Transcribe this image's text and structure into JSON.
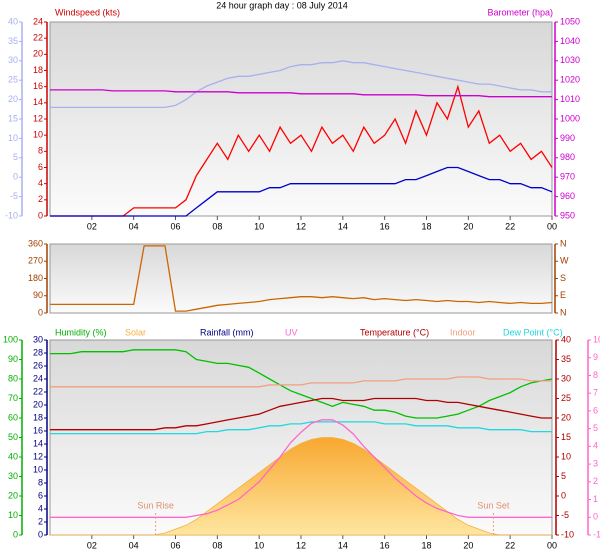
{
  "chart_data": [
    {
      "type": "line",
      "title": "24 hour graph day : 08 July 2014",
      "x": [
        0,
        0.5,
        1,
        1.5,
        2,
        2.5,
        3,
        3.5,
        4,
        4.5,
        5,
        5.5,
        6,
        6.5,
        7,
        7.5,
        8,
        8.5,
        9,
        9.5,
        10,
        10.5,
        11,
        11.5,
        12,
        12.5,
        13,
        13.5,
        14,
        14.5,
        15,
        15.5,
        16,
        16.5,
        17,
        17.5,
        18,
        18.5,
        19,
        19.5,
        20,
        20.5,
        21,
        21.5,
        22,
        22.5,
        23,
        23.5,
        24
      ],
      "xlim": [
        0,
        24
      ],
      "xticks": [
        {
          "value": 2,
          "label": "02"
        },
        {
          "value": 4,
          "label": "04"
        },
        {
          "value": 6,
          "label": "06"
        },
        {
          "value": 8,
          "label": "08"
        },
        10,
        12,
        14,
        16,
        18,
        20,
        22,
        {
          "value": 24,
          "label": "00"
        }
      ],
      "axes": [
        {
          "color": "#a8b0f0",
          "lim": [
            -10,
            40
          ],
          "ticks": [
            -10,
            -5,
            0,
            5,
            10,
            15,
            20,
            25,
            30,
            35,
            40
          ]
        },
        {
          "label": "Windspeed (kts)",
          "color": "#cc0000",
          "lim": [
            0,
            24
          ],
          "ticks": [
            0,
            2,
            4,
            6,
            8,
            10,
            12,
            14,
            16,
            18,
            20,
            22,
            24
          ]
        },
        {
          "label": "Barometer (hpa)",
          "color": "#cc00cc",
          "lim": [
            950,
            1050
          ],
          "ticks": [
            950,
            960,
            970,
            980,
            990,
            1000,
            1010,
            1020,
            1030,
            1040,
            1050
          ]
        }
      ],
      "series": [
        {
          "color": "#a8b0f0",
          "axis": 0,
          "values": [
            18,
            18,
            18,
            18,
            18,
            18,
            18,
            18,
            18,
            18,
            18,
            18,
            18.5,
            20,
            22,
            23.5,
            24.5,
            25.5,
            26,
            26,
            26.5,
            27,
            27.5,
            28.5,
            29,
            29,
            29.5,
            29.5,
            30,
            29.5,
            29.5,
            29,
            28.5,
            28,
            27.5,
            27,
            26.5,
            26,
            25.5,
            25,
            24.5,
            24,
            24,
            23.5,
            23,
            22.5,
            22.5,
            22,
            22
          ]
        },
        {
          "color": "#ff0000",
          "axis": 1,
          "values": [
            0,
            0,
            0,
            0,
            0,
            0,
            0,
            0,
            1,
            1,
            1,
            1,
            1,
            2,
            5,
            7,
            9,
            7,
            10,
            8,
            10,
            8,
            11,
            9,
            10,
            8,
            11,
            9,
            10,
            8,
            11,
            9,
            10,
            12,
            9,
            13,
            10,
            14,
            12,
            16,
            11,
            13,
            9,
            10,
            8,
            9,
            7,
            8,
            6
          ]
        },
        {
          "color": "#0000cc",
          "axis": 1,
          "values": [
            0,
            0,
            0,
            0,
            0,
            0,
            0,
            0,
            0,
            0,
            0,
            0,
            0,
            0,
            1,
            2,
            3,
            3,
            3,
            3,
            3,
            3.5,
            3.5,
            4,
            4,
            4,
            4,
            4,
            4,
            4,
            4,
            4,
            4,
            4,
            4.5,
            4.5,
            5,
            5.5,
            6,
            6,
            5.5,
            5,
            4.5,
            4.5,
            4,
            4,
            3.5,
            3.5,
            3
          ]
        },
        {
          "color": "#cc00cc",
          "axis": 2,
          "values": [
            1015,
            1015,
            1015,
            1015,
            1015,
            1015,
            1014.5,
            1014.5,
            1014.5,
            1014.5,
            1014.5,
            1014.5,
            1014,
            1014,
            1014,
            1014,
            1014,
            1014,
            1013.5,
            1013.5,
            1013.5,
            1013.5,
            1013.5,
            1013.5,
            1013,
            1013,
            1013,
            1013,
            1013,
            1013,
            1012.5,
            1012.5,
            1012.5,
            1012.5,
            1012.5,
            1012.5,
            1012,
            1012,
            1012,
            1012,
            1012,
            1012,
            1011.5,
            1011.5,
            1011.5,
            1011.5,
            1011.5,
            1011.5,
            1011.5
          ]
        }
      ]
    },
    {
      "type": "line",
      "x": [
        0,
        0.5,
        1,
        1.5,
        2,
        2.5,
        3,
        3.5,
        4,
        4.5,
        5,
        5.5,
        6,
        6.5,
        7,
        7.5,
        8,
        8.5,
        9,
        9.5,
        10,
        10.5,
        11,
        11.5,
        12,
        12.5,
        13,
        13.5,
        14,
        14.5,
        15,
        15.5,
        16,
        16.5,
        17,
        17.5,
        18,
        18.5,
        19,
        19.5,
        20,
        20.5,
        21,
        21.5,
        22,
        22.5,
        23,
        23.5,
        24
      ],
      "xlim": [
        0,
        24
      ],
      "axes": [
        {
          "color": "#a04000",
          "lim": [
            0,
            360
          ],
          "ticks": [
            0,
            90,
            180,
            270,
            360
          ]
        },
        {
          "color": "#a04000",
          "lim": [
            0,
            360
          ],
          "ticks": [
            {
              "value": 0,
              "label": "N"
            },
            {
              "value": 90,
              "label": "E"
            },
            {
              "value": 180,
              "label": "S"
            },
            {
              "value": 270,
              "label": "W"
            },
            {
              "value": 360,
              "label": "N"
            }
          ]
        }
      ],
      "series": [
        {
          "color": "#cc6600",
          "axis": 0,
          "values": [
            45,
            45,
            45,
            45,
            45,
            45,
            45,
            45,
            45,
            350,
            350,
            350,
            10,
            10,
            20,
            30,
            40,
            45,
            50,
            55,
            60,
            70,
            75,
            80,
            85,
            85,
            80,
            85,
            80,
            75,
            80,
            70,
            75,
            70,
            65,
            70,
            65,
            60,
            65,
            60,
            60,
            55,
            60,
            55,
            50,
            55,
            50,
            50,
            55
          ]
        }
      ]
    },
    {
      "type": "line",
      "x": [
        0,
        0.5,
        1,
        1.5,
        2,
        2.5,
        3,
        3.5,
        4,
        4.5,
        5,
        5.5,
        6,
        6.5,
        7,
        7.5,
        8,
        8.5,
        9,
        9.5,
        10,
        10.5,
        11,
        11.5,
        12,
        12.5,
        13,
        13.5,
        14,
        14.5,
        15,
        15.5,
        16,
        16.5,
        17,
        17.5,
        18,
        18.5,
        19,
        19.5,
        20,
        20.5,
        21,
        21.5,
        22,
        22.5,
        23,
        23.5,
        24
      ],
      "xlim": [
        0,
        24
      ],
      "xticks": [
        {
          "value": 2,
          "label": "02"
        },
        {
          "value": 4,
          "label": "04"
        },
        {
          "value": 6,
          "label": "06"
        },
        {
          "value": 8,
          "label": "08"
        },
        10,
        12,
        14,
        16,
        18,
        20,
        22,
        {
          "value": 24,
          "label": "00"
        }
      ],
      "axes": [
        {
          "label": "Humidity (%)",
          "color": "#00b000",
          "lim": [
            0,
            100
          ],
          "ticks": [
            0,
            10,
            20,
            30,
            40,
            50,
            60,
            70,
            80,
            90,
            100
          ]
        },
        {
          "label": "Rainfall (mm)",
          "color": "#000080",
          "lim": [
            0,
            30
          ],
          "ticks": [
            0,
            2,
            4,
            6,
            8,
            10,
            12,
            14,
            16,
            18,
            20,
            22,
            24,
            26,
            28,
            30
          ]
        },
        {
          "label": "Temperature (°C)",
          "color": "#b00000",
          "lim": [
            -10,
            40
          ],
          "ticks": [
            -10,
            -5,
            0,
            5,
            10,
            15,
            20,
            25,
            30,
            35,
            40
          ]
        },
        {
          "label": "UV",
          "color": "#ff66cc",
          "lim": [
            -1,
            10
          ],
          "ticks": [
            -1,
            0,
            1,
            2,
            3,
            4,
            5,
            6,
            7,
            8,
            9,
            10
          ]
        }
      ],
      "series": [
        {
          "name": "Solar",
          "color": "#f5b041",
          "axis": 0,
          "area": true,
          "values": [
            0,
            0,
            0,
            0,
            0,
            0,
            0,
            0,
            0,
            0,
            0,
            1,
            3,
            5,
            8,
            12,
            16,
            20,
            24,
            28,
            32,
            36,
            40,
            44,
            47,
            49,
            50,
            50,
            49,
            47,
            44,
            40,
            36,
            32,
            28,
            24,
            20,
            16,
            12,
            8,
            5,
            3,
            1,
            0,
            0,
            0,
            0,
            0,
            0
          ]
        },
        {
          "color": "#00c000",
          "axis": 0,
          "values": [
            93,
            93,
            93,
            94,
            94,
            94,
            94,
            94,
            95,
            95,
            95,
            95,
            95,
            94,
            90,
            89,
            88,
            88,
            87,
            86,
            83,
            80,
            77,
            74,
            72,
            70,
            68,
            66,
            68,
            67,
            66,
            64,
            64,
            63,
            61,
            60,
            60,
            60,
            61,
            62,
            64,
            66,
            69,
            71,
            73,
            76,
            78,
            79,
            80
          ]
        },
        {
          "color": "#b00000",
          "axis": 2,
          "values": [
            17,
            17,
            17,
            17,
            17,
            17,
            17,
            17,
            17,
            17,
            17,
            17.5,
            17.5,
            18,
            18,
            18.5,
            19,
            19.5,
            20,
            20.5,
            21,
            22,
            23,
            23.5,
            24,
            24.5,
            25,
            25,
            24.5,
            24.5,
            24.5,
            25,
            25,
            25,
            25,
            25,
            24.5,
            24.5,
            24,
            24,
            23.5,
            23,
            22.5,
            22,
            21.5,
            21,
            20.5,
            20,
            20
          ]
        },
        {
          "name": "Indoor",
          "color": "#f0a080",
          "axis": 2,
          "values": [
            28,
            28,
            28,
            28,
            28,
            28,
            28,
            28,
            28,
            28,
            28,
            28,
            28,
            28,
            28,
            28,
            28,
            28,
            28,
            28,
            28,
            28.5,
            28.5,
            28.5,
            28.5,
            29,
            29,
            29,
            29,
            29,
            29.5,
            29.5,
            29.5,
            29.5,
            30,
            30,
            30,
            30,
            30,
            30.5,
            30.5,
            30.5,
            30,
            30,
            30,
            30,
            29.5,
            29.5,
            29.5
          ]
        },
        {
          "name": "Dew Point (°C)",
          "color": "#20d8e0",
          "axis": 2,
          "values": [
            16,
            16,
            16,
            16,
            16,
            16,
            16,
            16,
            16,
            16,
            16,
            16,
            16,
            16,
            16,
            16.5,
            16.5,
            17,
            17,
            17,
            17.5,
            18,
            18,
            18.5,
            18.5,
            19,
            19,
            19,
            19,
            19,
            19,
            19,
            18.5,
            18.5,
            18.5,
            18,
            18,
            18,
            18,
            17.5,
            17.5,
            17.5,
            17,
            17,
            17,
            17,
            16.5,
            16.5,
            16.5
          ]
        },
        {
          "color": "#ff66cc",
          "axis": 3,
          "values": [
            0,
            0,
            0,
            0,
            0,
            0,
            0,
            0,
            0,
            0,
            0,
            0,
            0,
            0,
            0.1,
            0.2,
            0.4,
            0.7,
            1,
            1.5,
            2,
            2.7,
            3.4,
            4.2,
            4.8,
            5.3,
            5.5,
            5.5,
            5.2,
            4.7,
            4,
            3.4,
            2.8,
            2.2,
            1.7,
            1.2,
            0.8,
            0.5,
            0.3,
            0.1,
            0,
            0,
            0,
            0,
            0,
            0,
            0,
            0,
            0
          ]
        }
      ],
      "annotations": [
        {
          "text": "Sun Rise",
          "x": 5.05
        },
        {
          "text": "Sun Set",
          "x": 21.2
        }
      ]
    }
  ]
}
